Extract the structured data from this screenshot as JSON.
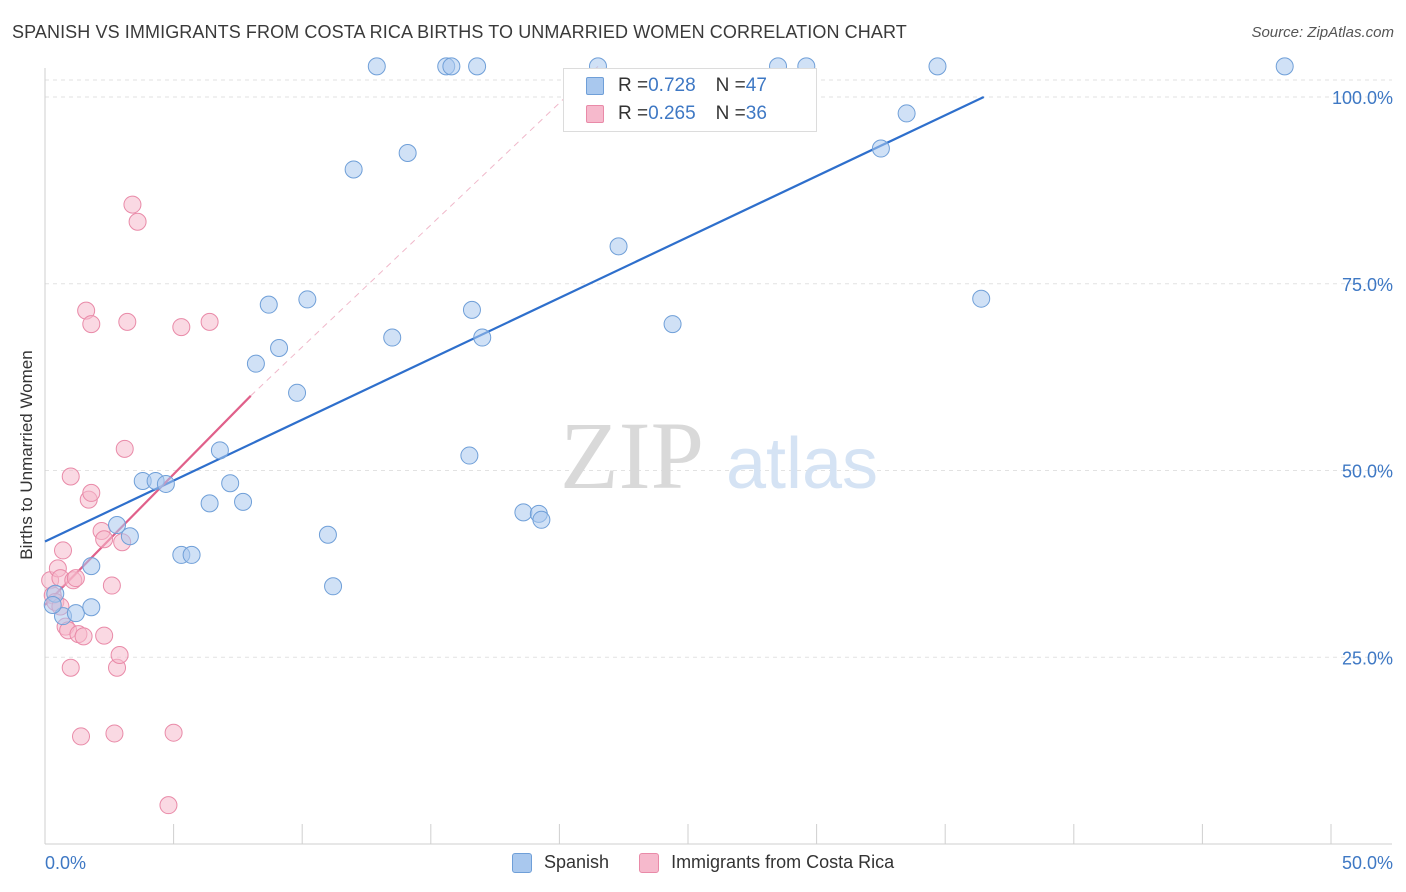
{
  "title": "SPANISH VS IMMIGRANTS FROM COSTA RICA BIRTHS TO UNMARRIED WOMEN CORRELATION CHART",
  "source": "Source: ZipAtlas.com",
  "watermark": {
    "zip": "ZIP",
    "atlas": "atlas"
  },
  "colors": {
    "blue_fill": "#a9c8ee",
    "blue_stroke": "#6f9fd8",
    "blue_line": "#2e6fcc",
    "pink_fill": "#f6b9cc",
    "pink_stroke": "#e98aa8",
    "pink_line": "#e0608a",
    "tick_label": "#3e78c4"
  },
  "legend": {
    "rows": [
      {
        "r_label": "R = ",
        "r_value": "0.728",
        "n_label": "N = ",
        "n_value": "47"
      },
      {
        "r_label": "R = ",
        "r_value": "0.265",
        "n_label": "N = ",
        "n_value": "36"
      }
    ]
  },
  "bottom_legend": [
    "Spanish",
    "Immigrants from Costa Rica"
  ],
  "chart_data": {
    "type": "scatter",
    "title": "SPANISH VS IMMIGRANTS FROM COSTA RICA BIRTHS TO UNMARRIED WOMEN CORRELATION CHART",
    "xlabel": "",
    "ylabel": "Births to Unmarried Women",
    "xlim": [
      0,
      50
    ],
    "ylim": [
      0,
      100
    ],
    "x_tick_labels": [
      "0.0%",
      "50.0%"
    ],
    "y_ticks": [
      25,
      50,
      75,
      100
    ],
    "y_tick_labels": [
      "25.0%",
      "50.0%",
      "75.0%",
      "100.0%"
    ],
    "series": [
      {
        "name": "Spanish",
        "color": "#a9c8ee",
        "r": 0.728,
        "n": 47,
        "trend": {
          "x": [
            0,
            36.5
          ],
          "y": [
            40.5,
            100
          ]
        },
        "points": [
          [
            0.4,
            33.5
          ],
          [
            0.7,
            30.5
          ],
          [
            1.2,
            30.9
          ],
          [
            1.8,
            31.7
          ],
          [
            1.8,
            37.2
          ],
          [
            2.8,
            42.7
          ],
          [
            3.3,
            41.2
          ],
          [
            3.8,
            48.6
          ],
          [
            4.3,
            48.6
          ],
          [
            4.7,
            48.2
          ],
          [
            5.3,
            38.7
          ],
          [
            5.7,
            38.7
          ],
          [
            6.4,
            45.6
          ],
          [
            6.8,
            52.7
          ],
          [
            7.2,
            48.3
          ],
          [
            7.7,
            45.8
          ],
          [
            8.2,
            64.3
          ],
          [
            8.7,
            72.2
          ],
          [
            9.1,
            66.4
          ],
          [
            9.8,
            60.4
          ],
          [
            10.2,
            72.9
          ],
          [
            11.0,
            41.4
          ],
          [
            11.2,
            34.5
          ],
          [
            12.0,
            90.3
          ],
          [
            12.9,
            104.1
          ],
          [
            13.5,
            67.8
          ],
          [
            14.1,
            92.5
          ],
          [
            15.6,
            104.1
          ],
          [
            15.8,
            104.1
          ],
          [
            16.5,
            52.0
          ],
          [
            16.6,
            71.5
          ],
          [
            16.8,
            104.1
          ],
          [
            17.0,
            67.8
          ],
          [
            18.6,
            44.4
          ],
          [
            19.2,
            44.2
          ],
          [
            19.3,
            43.4
          ],
          [
            21.5,
            104.1
          ],
          [
            22.3,
            80.0
          ],
          [
            24.4,
            69.6
          ],
          [
            28.5,
            104.1
          ],
          [
            29.6,
            104.1
          ],
          [
            32.5,
            93.1
          ],
          [
            33.5,
            97.8
          ],
          [
            34.7,
            104.1
          ],
          [
            36.4,
            73.0
          ],
          [
            48.2,
            104.1
          ],
          [
            0.3,
            32.0
          ]
        ]
      },
      {
        "name": "Immigrants from Costa Rica",
        "color": "#f6b9cc",
        "r": 0.265,
        "n": 36,
        "trend": {
          "x": [
            0,
            8.0
          ],
          "y": [
            32.0,
            60.0
          ]
        },
        "trend_ext": {
          "x": [
            8.0,
            21.5
          ],
          "y": [
            60.0,
            104.1
          ]
        },
        "points": [
          [
            0.2,
            35.3
          ],
          [
            0.3,
            33.3
          ],
          [
            0.4,
            32.4
          ],
          [
            0.5,
            36.9
          ],
          [
            0.6,
            31.8
          ],
          [
            0.6,
            35.6
          ],
          [
            0.7,
            39.3
          ],
          [
            0.8,
            29.1
          ],
          [
            0.9,
            28.6
          ],
          [
            1.0,
            23.6
          ],
          [
            1.0,
            49.2
          ],
          [
            1.1,
            35.3
          ],
          [
            1.2,
            35.6
          ],
          [
            1.3,
            28.1
          ],
          [
            1.4,
            14.4
          ],
          [
            1.5,
            27.8
          ],
          [
            1.6,
            71.4
          ],
          [
            1.7,
            46.1
          ],
          [
            1.8,
            69.6
          ],
          [
            1.8,
            47.0
          ],
          [
            2.2,
            41.9
          ],
          [
            2.3,
            40.8
          ],
          [
            2.3,
            27.9
          ],
          [
            2.6,
            34.6
          ],
          [
            2.7,
            14.8
          ],
          [
            2.8,
            23.6
          ],
          [
            2.9,
            25.3
          ],
          [
            3.0,
            40.4
          ],
          [
            3.1,
            52.9
          ],
          [
            3.2,
            69.9
          ],
          [
            3.4,
            85.6
          ],
          [
            3.6,
            83.3
          ],
          [
            4.8,
            5.2
          ],
          [
            5.0,
            14.9
          ],
          [
            5.3,
            69.2
          ],
          [
            6.4,
            69.9
          ]
        ]
      }
    ]
  }
}
